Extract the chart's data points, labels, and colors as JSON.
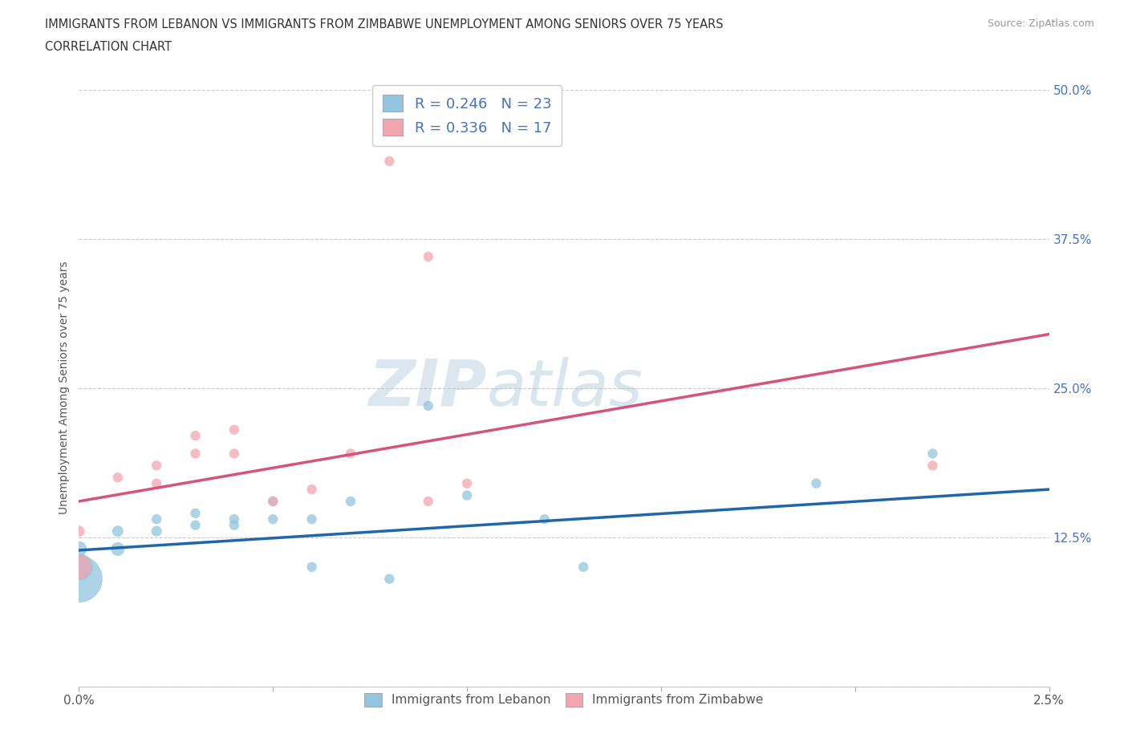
{
  "title_line1": "IMMIGRANTS FROM LEBANON VS IMMIGRANTS FROM ZIMBABWE UNEMPLOYMENT AMONG SENIORS OVER 75 YEARS",
  "title_line2": "CORRELATION CHART",
  "source": "Source: ZipAtlas.com",
  "ylabel": "Unemployment Among Seniors over 75 years",
  "x_min": 0.0,
  "x_max": 0.025,
  "y_min": 0.0,
  "y_max": 0.5,
  "x_ticks": [
    0.0,
    0.025
  ],
  "x_tick_labels": [
    "0.0%",
    "2.5%"
  ],
  "y_ticks": [
    0.0,
    0.125,
    0.25,
    0.375,
    0.5
  ],
  "y_tick_labels": [
    "",
    "12.5%",
    "25.0%",
    "37.5%",
    "50.0%"
  ],
  "legend_label1": "Immigrants from Lebanon",
  "legend_label2": "Immigrants from Zimbabwe",
  "R1": 0.246,
  "N1": 23,
  "R2": 0.336,
  "N2": 17,
  "color1": "#92c5de",
  "color2": "#f4a6b0",
  "line_color1": "#2166ac",
  "line_color2": "#d6537a",
  "watermark": "ZIPatlas",
  "lebanon_x": [
    0.0,
    0.0,
    0.0,
    0.001,
    0.001,
    0.002,
    0.002,
    0.003,
    0.003,
    0.004,
    0.004,
    0.005,
    0.005,
    0.006,
    0.006,
    0.007,
    0.008,
    0.009,
    0.01,
    0.012,
    0.013,
    0.019,
    0.022
  ],
  "lebanon_y": [
    0.09,
    0.1,
    0.115,
    0.115,
    0.13,
    0.13,
    0.14,
    0.135,
    0.145,
    0.135,
    0.14,
    0.14,
    0.155,
    0.14,
    0.1,
    0.155,
    0.09,
    0.235,
    0.16,
    0.14,
    0.1,
    0.17,
    0.195
  ],
  "lebanon_s": [
    1800,
    600,
    200,
    150,
    100,
    90,
    80,
    80,
    80,
    80,
    80,
    80,
    80,
    80,
    80,
    80,
    80,
    80,
    80,
    80,
    80,
    80,
    80
  ],
  "zimbabwe_x": [
    0.0,
    0.0,
    0.001,
    0.002,
    0.002,
    0.003,
    0.003,
    0.004,
    0.004,
    0.005,
    0.006,
    0.007,
    0.008,
    0.009,
    0.009,
    0.01,
    0.022
  ],
  "zimbabwe_y": [
    0.1,
    0.13,
    0.175,
    0.185,
    0.17,
    0.195,
    0.21,
    0.195,
    0.215,
    0.155,
    0.165,
    0.195,
    0.44,
    0.36,
    0.155,
    0.17,
    0.185
  ],
  "zimbabwe_s": [
    500,
    100,
    80,
    80,
    80,
    80,
    80,
    80,
    80,
    80,
    80,
    80,
    80,
    80,
    80,
    80,
    80
  ],
  "leb_trend_y0": 0.114,
  "leb_trend_y1": 0.165,
  "zim_trend_y0": 0.155,
  "zim_trend_y1": 0.295
}
